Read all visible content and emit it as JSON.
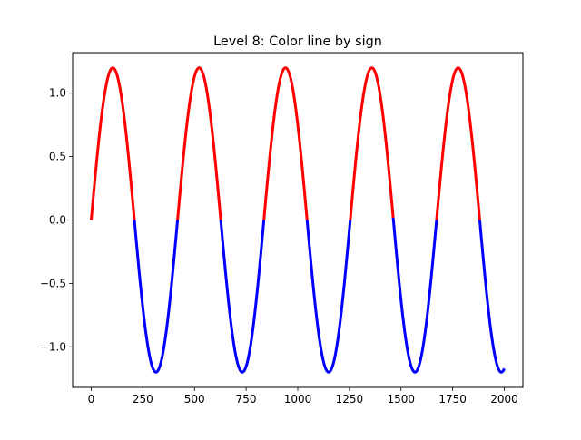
{
  "chart_data": {
    "type": "line",
    "title": "Level 8: Color line by sign",
    "xlabel": "",
    "ylabel": "",
    "xlim": [
      -90,
      2090
    ],
    "ylim": [
      -1.32,
      1.32
    ],
    "grid": false,
    "x_ticks": [
      {
        "value": 0,
        "label": "0"
      },
      {
        "value": 250,
        "label": "250"
      },
      {
        "value": 500,
        "label": "500"
      },
      {
        "value": 750,
        "label": "750"
      },
      {
        "value": 1000,
        "label": "1000"
      },
      {
        "value": 1250,
        "label": "1250"
      },
      {
        "value": 1500,
        "label": "1500"
      },
      {
        "value": 1750,
        "label": "1750"
      },
      {
        "value": 2000,
        "label": "2000"
      }
    ],
    "y_ticks": [
      {
        "value": -1.0,
        "label": "−1.0"
      },
      {
        "value": -0.5,
        "label": "−0.5"
      },
      {
        "value": 0.0,
        "label": "0.0"
      },
      {
        "value": 0.5,
        "label": "0.5"
      },
      {
        "value": 1.0,
        "label": "1.0"
      }
    ],
    "series": [
      {
        "function": "sine",
        "amplitude": 1.2,
        "period": 418,
        "x_start": 0,
        "x_end": 2000,
        "samples": 2001,
        "positive_color": "#ff0000",
        "negative_color": "#0000ff"
      }
    ]
  }
}
